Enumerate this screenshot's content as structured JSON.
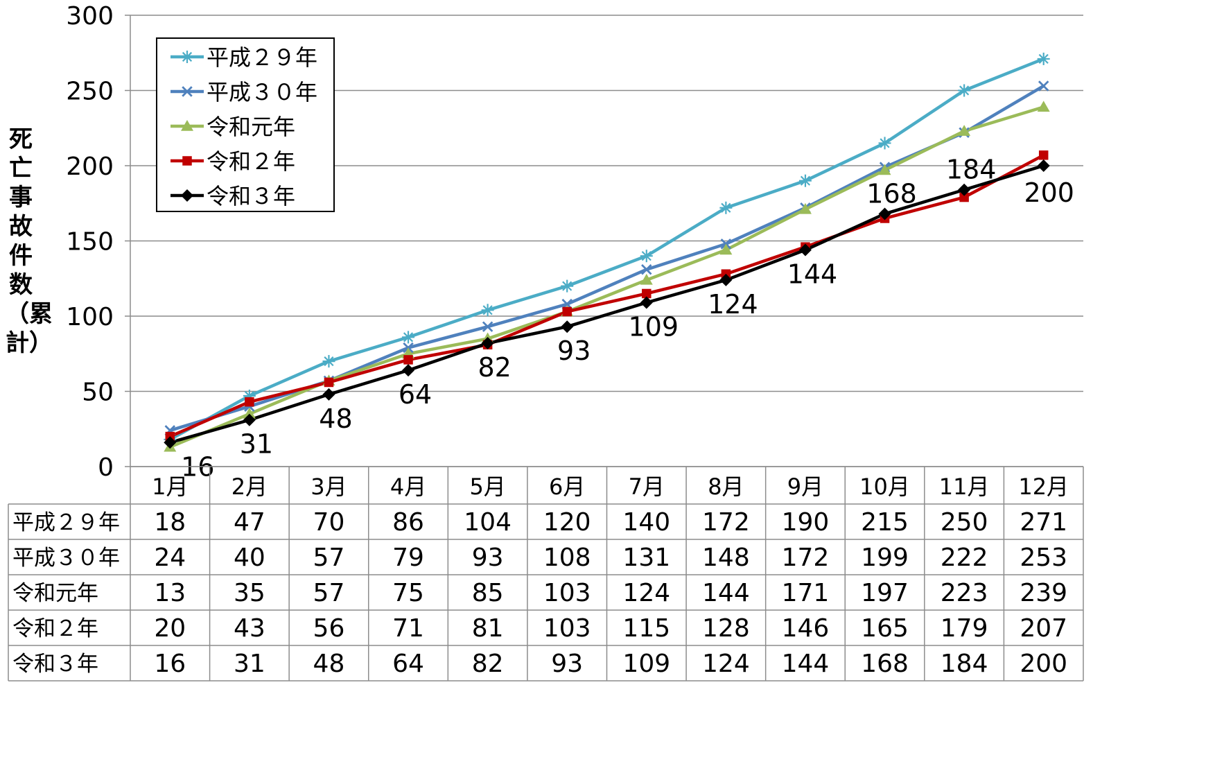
{
  "chart_data": {
    "type": "line",
    "ylabel": "死亡事故件数（累計）",
    "ylim": [
      0,
      300
    ],
    "yticks": [
      0,
      50,
      100,
      150,
      200,
      250,
      300
    ],
    "categories": [
      "1月",
      "2月",
      "3月",
      "4月",
      "5月",
      "6月",
      "7月",
      "8月",
      "9月",
      "10月",
      "11月",
      "12月"
    ],
    "legend_position": "top-left",
    "grid": true,
    "data_labels_series": "令和３年",
    "series": [
      {
        "name": "平成２９年",
        "color": "#4BACC6",
        "marker": "asterisk",
        "values": [
          18,
          47,
          70,
          86,
          104,
          120,
          140,
          172,
          190,
          215,
          250,
          271
        ]
      },
      {
        "name": "平成３０年",
        "color": "#4F81BD",
        "marker": "x",
        "values": [
          24,
          40,
          57,
          79,
          93,
          108,
          131,
          148,
          172,
          199,
          222,
          253
        ]
      },
      {
        "name": "令和元年",
        "color": "#9BBB59",
        "marker": "triangle",
        "values": [
          13,
          35,
          57,
          75,
          85,
          103,
          124,
          144,
          171,
          197,
          223,
          239
        ]
      },
      {
        "name": "令和２年",
        "color": "#C00000",
        "marker": "square",
        "values": [
          20,
          43,
          56,
          71,
          81,
          103,
          115,
          128,
          146,
          165,
          179,
          207
        ]
      },
      {
        "name": "令和３年",
        "color": "#000000",
        "marker": "diamond",
        "values": [
          16,
          31,
          48,
          64,
          82,
          93,
          109,
          124,
          144,
          168,
          184,
          200
        ]
      }
    ]
  }
}
